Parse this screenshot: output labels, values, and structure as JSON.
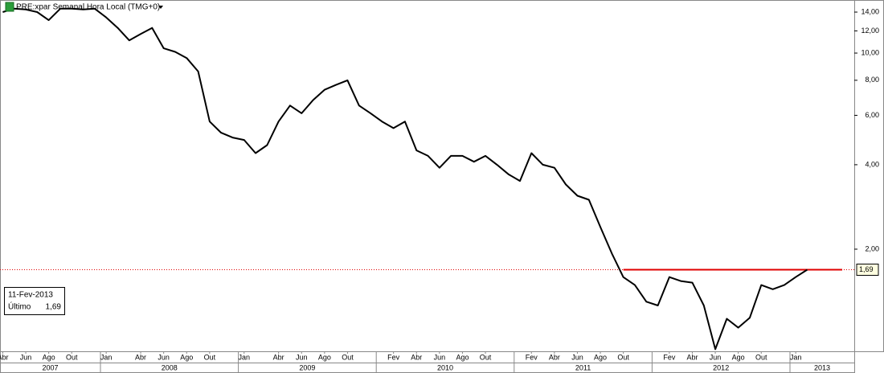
{
  "chart_data": {
    "type": "line",
    "title": "PRE:xpar Semanal Hora Local (TMG+0)",
    "log_y": true,
    "color": "#000000",
    "x": [
      "2007-04",
      "2007-05",
      "2007-06",
      "2007-07",
      "2007-08",
      "2007-09",
      "2007-10",
      "2007-11",
      "2007-12",
      "2008-01",
      "2008-02",
      "2008-03",
      "2008-04",
      "2008-05",
      "2008-06",
      "2008-07",
      "2008-08",
      "2008-09",
      "2008-10",
      "2008-11",
      "2008-12",
      "2009-01",
      "2009-02",
      "2009-03",
      "2009-04",
      "2009-05",
      "2009-06",
      "2009-07",
      "2009-08",
      "2009-09",
      "2009-10",
      "2009-11",
      "2009-12",
      "2010-01",
      "2010-02",
      "2010-03",
      "2010-04",
      "2010-05",
      "2010-06",
      "2010-07",
      "2010-08",
      "2010-09",
      "2010-10",
      "2010-11",
      "2010-12",
      "2011-01",
      "2011-02",
      "2011-03",
      "2011-04",
      "2011-05",
      "2011-06",
      "2011-07",
      "2011-08",
      "2011-09",
      "2011-10",
      "2011-11",
      "2011-12",
      "2012-01",
      "2012-02",
      "2012-03",
      "2012-04",
      "2012-05",
      "2012-06",
      "2012-07",
      "2012-08",
      "2012-09",
      "2012-10",
      "2012-11",
      "2012-12",
      "2013-01",
      "2013-02"
    ],
    "values": [
      14.0,
      14.4,
      14.3,
      14.0,
      13.1,
      14.4,
      14.4,
      14.3,
      14.4,
      13.4,
      12.3,
      11.1,
      11.7,
      12.3,
      10.4,
      10.1,
      9.6,
      8.6,
      5.7,
      5.2,
      5.0,
      4.9,
      4.4,
      4.7,
      5.7,
      6.5,
      6.1,
      6.8,
      7.4,
      7.7,
      8.0,
      6.5,
      6.1,
      5.7,
      5.4,
      5.7,
      4.5,
      4.3,
      3.9,
      4.3,
      4.3,
      4.1,
      4.3,
      4.0,
      3.7,
      3.5,
      4.4,
      4.0,
      3.9,
      3.4,
      3.1,
      3.0,
      2.4,
      1.93,
      1.59,
      1.49,
      1.3,
      1.26,
      1.59,
      1.54,
      1.52,
      1.26,
      0.88,
      1.13,
      1.05,
      1.14,
      1.49,
      1.44,
      1.49,
      1.59,
      1.69
    ],
    "ylim": [
      0.865,
      15.46
    ],
    "yticks": [
      {
        "value": 2,
        "label": "2,00"
      },
      {
        "value": 4,
        "label": "4,00"
      },
      {
        "value": 6,
        "label": "6,00"
      },
      {
        "value": 8,
        "label": "8,00"
      },
      {
        "value": 10,
        "label": "10,00"
      },
      {
        "value": 12,
        "label": "12,00"
      },
      {
        "value": 14,
        "label": "14,00"
      }
    ],
    "xticks": [
      {
        "value": "2007-04",
        "label": "Abr"
      },
      {
        "value": "2007-06",
        "label": "Jun"
      },
      {
        "value": "2007-08",
        "label": "Ago"
      },
      {
        "value": "2007-10",
        "label": "Out"
      },
      {
        "value": "2008-01",
        "label": "Jan"
      },
      {
        "value": "2008-04",
        "label": "Abr"
      },
      {
        "value": "2008-06",
        "label": "Jun"
      },
      {
        "value": "2008-08",
        "label": "Ago"
      },
      {
        "value": "2008-10",
        "label": "Out"
      },
      {
        "value": "2009-01",
        "label": "Jan"
      },
      {
        "value": "2009-04",
        "label": "Abr"
      },
      {
        "value": "2009-06",
        "label": "Jun"
      },
      {
        "value": "2009-08",
        "label": "Ago"
      },
      {
        "value": "2009-10",
        "label": "Out"
      },
      {
        "value": "2010-02",
        "label": "Fev"
      },
      {
        "value": "2010-04",
        "label": "Abr"
      },
      {
        "value": "2010-06",
        "label": "Jun"
      },
      {
        "value": "2010-08",
        "label": "Ago"
      },
      {
        "value": "2010-10",
        "label": "Out"
      },
      {
        "value": "2011-02",
        "label": "Fev"
      },
      {
        "value": "2011-04",
        "label": "Abr"
      },
      {
        "value": "2011-06",
        "label": "Jun"
      },
      {
        "value": "2011-08",
        "label": "Ago"
      },
      {
        "value": "2011-10",
        "label": "Out"
      },
      {
        "value": "2012-02",
        "label": "Fev"
      },
      {
        "value": "2012-04",
        "label": "Abr"
      },
      {
        "value": "2012-06",
        "label": "Jun"
      },
      {
        "value": "2012-08",
        "label": "Ago"
      },
      {
        "value": "2012-10",
        "label": "Out"
      },
      {
        "value": "2013-01",
        "label": "Jan"
      }
    ],
    "years": [
      "2007",
      "2008",
      "2009",
      "2010",
      "2011",
      "2012",
      "2013"
    ],
    "reference_line": {
      "value": 1.69,
      "from": "2011-10",
      "color": "#e00000"
    },
    "last": {
      "date": "11-Fev-2013",
      "name": "Último",
      "value": 1.69,
      "label": "1,69"
    }
  }
}
